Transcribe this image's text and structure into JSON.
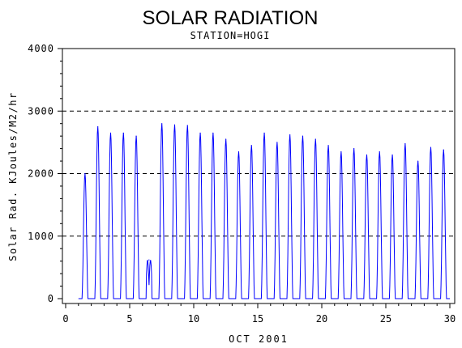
{
  "chart_data": {
    "type": "line",
    "title": "SOLAR RADIATION",
    "subtitle": "STATION=HOGI",
    "xlabel": "OCT 2001",
    "ylabel": "Solar Rad. KJoules/M2/hr",
    "xlim": [
      0,
      30
    ],
    "ylim": [
      0,
      4000
    ],
    "x_ticks": [
      0,
      5,
      10,
      15,
      20,
      25,
      30
    ],
    "y_ticks": [
      0,
      1000,
      2000,
      3000,
      4000
    ],
    "grid": "horizontal dashed",
    "line_color": "#0000ff",
    "daily_peaks": [
      {
        "day": 1,
        "peak": 2000
      },
      {
        "day": 2,
        "peak": 2750
      },
      {
        "day": 3,
        "peak": 2650
      },
      {
        "day": 4,
        "peak": 2650
      },
      {
        "day": 5,
        "peak": 2600
      },
      {
        "day": 6,
        "peak": 620
      },
      {
        "day": 7,
        "peak": 2800
      },
      {
        "day": 8,
        "peak": 2780
      },
      {
        "day": 9,
        "peak": 2770
      },
      {
        "day": 10,
        "peak": 2650
      },
      {
        "day": 11,
        "peak": 2650
      },
      {
        "day": 12,
        "peak": 2550
      },
      {
        "day": 13,
        "peak": 2350
      },
      {
        "day": 14,
        "peak": 2450
      },
      {
        "day": 15,
        "peak": 2650
      },
      {
        "day": 16,
        "peak": 2500
      },
      {
        "day": 17,
        "peak": 2620
      },
      {
        "day": 18,
        "peak": 2600
      },
      {
        "day": 19,
        "peak": 2550
      },
      {
        "day": 20,
        "peak": 2450
      },
      {
        "day": 21,
        "peak": 2350
      },
      {
        "day": 22,
        "peak": 2400
      },
      {
        "day": 23,
        "peak": 2300
      },
      {
        "day": 24,
        "peak": 2350
      },
      {
        "day": 25,
        "peak": 2300
      },
      {
        "day": 26,
        "peak": 2480
      },
      {
        "day": 27,
        "peak": 2200
      },
      {
        "day": 28,
        "peak": 2420
      },
      {
        "day": 29,
        "peak": 2380
      }
    ]
  }
}
